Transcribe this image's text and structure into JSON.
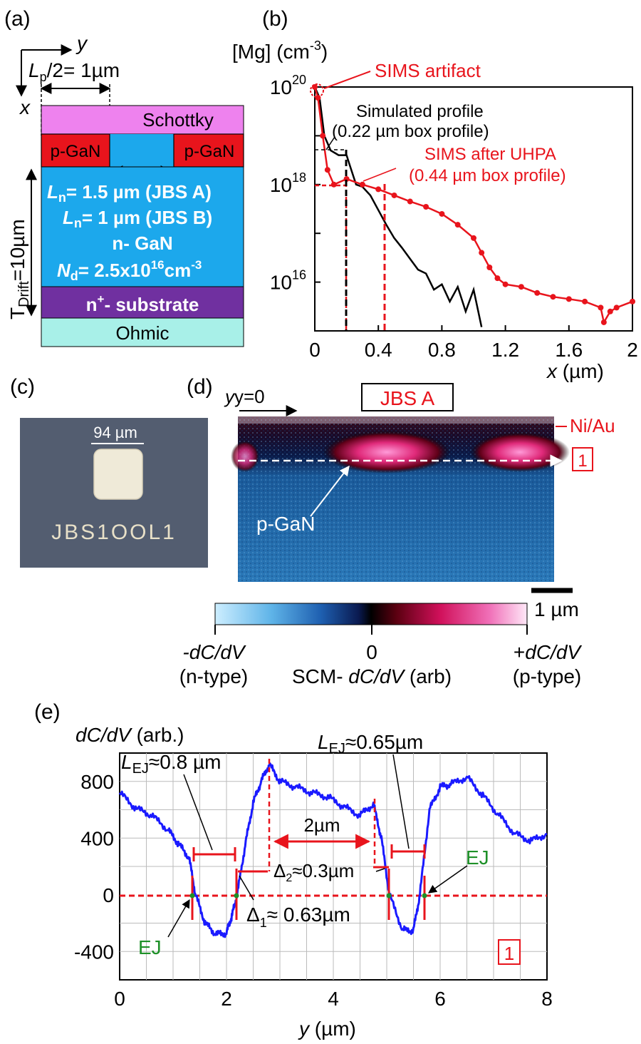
{
  "panel_a": {
    "label": "(a)",
    "axis_y": "y",
    "axis_x": "x",
    "lp_label_L": "L",
    "lp_label_sub": "p",
    "lp_label_rest": "/2= 1µm",
    "schottky": "Schottky",
    "pgan_left": "p-GaN",
    "pgan_right": "p-GaN",
    "ln_a_L": "L",
    "ln_a_sub": "n",
    "ln_a_rest": "= 1.5 µm (JBS A)",
    "ln_b_L": "L",
    "ln_b_sub": "n",
    "ln_b_rest": "= 1 µm (JBS B)",
    "ngan": "n- GaN",
    "nd_N": "N",
    "nd_sub": "d",
    "nd_rest": "= 2.5x10",
    "nd_exp": "16",
    "nd_unit": "cm",
    "nd_unit_exp": "-3",
    "tdrift_T": "T",
    "tdrift_sub": "Drift",
    "tdrift_rest": "=10µm",
    "substrate_n": "n",
    "substrate_sup": "+",
    "substrate_rest": "- substrate",
    "ohmic": "Ohmic",
    "colors": {
      "schottky": "#ee82ee",
      "pgan": "#e8141c",
      "ngan": "#1ca8ec",
      "substrate": "#7030a0",
      "ohmic": "#a8f0e8"
    }
  },
  "panel_b": {
    "label": "(b)",
    "ylabel": "[Mg] (cm",
    "ylabel_exp": "-3",
    "ylabel_close": ")",
    "ytick_base": "10",
    "yticks": [
      {
        "exp": "20",
        "v": 1e+20
      },
      {
        "exp": "18",
        "v": 1e+18
      },
      {
        "exp": "16",
        "v": 1e+16
      }
    ],
    "xticks": [
      "0",
      "0.4",
      "0.8",
      "1.2",
      "1.6",
      "2"
    ],
    "xlabel_var": "x",
    "xlabel_unit": " (µm)",
    "annotation_sims_artifact": "SIMS artifact",
    "annotation_sim_1": "Simulated profile",
    "annotation_sim_2": "(0.22 µm box profile)",
    "annotation_uhpa_1": "SIMS after UHPA",
    "annotation_uhpa_2": "(0.44 µm box profile)"
  },
  "chart_data": [
    {
      "type": "line",
      "xlabel": "x (µm)",
      "ylabel": "[Mg] (cm-3)",
      "yscale": "log",
      "xlim": [
        0,
        2
      ],
      "ylim": [
        1000000000000000.0,
        1e+20
      ],
      "series": [
        {
          "name": "Simulated profile",
          "color": "#000000",
          "x": [
            0.0,
            0.03,
            0.06,
            0.1,
            0.15,
            0.2,
            0.22,
            0.26,
            0.3,
            0.35,
            0.4,
            0.45,
            0.5,
            0.55,
            0.6,
            0.65,
            0.7,
            0.75,
            0.8,
            0.85,
            0.9,
            0.95,
            1.0,
            1.05
          ],
          "y": [
            1e+20,
            6e+19,
            1e+19,
            5e+18,
            4e+18,
            4e+18,
            2.5e+18,
            1e+18,
            9e+17,
            6e+17,
            3e+17,
            1.5e+17,
            8e+16,
            5e+16,
            3e+16,
            1.8e+16,
            1.5e+16,
            7000000000000000.0,
            9000000000000000.0,
            4000000000000000.0,
            8000000000000000.0,
            2500000000000000.0,
            7000000000000000.0,
            1200000000000000.0
          ]
        },
        {
          "name": "SIMS after UHPA",
          "color": "#e8141c",
          "x": [
            0.0,
            0.02,
            0.05,
            0.08,
            0.12,
            0.2,
            0.3,
            0.4,
            0.5,
            0.6,
            0.7,
            0.8,
            0.9,
            1.0,
            1.05,
            1.1,
            1.15,
            1.2,
            1.3,
            1.4,
            1.5,
            1.6,
            1.7,
            1.8,
            1.82,
            1.86,
            1.9,
            2.0
          ],
          "y": [
            1e+20,
            6e+19,
            1e+19,
            2e+18,
            1e+18,
            1.3e+18,
            1e+18,
            8e+17,
            6e+17,
            4.5e+17,
            3.5e+17,
            2.5e+17,
            1.5e+17,
            8e+16,
            4e+16,
            2e+16,
            1.2e+16,
            9000000000000000.0,
            8000000000000000.0,
            6000000000000000.0,
            5000000000000000.0,
            4500000000000000.0,
            4000000000000000.0,
            3000000000000000.0,
            1500000000000000.0,
            2500000000000000.0,
            3000000000000000.0,
            4000000000000000.0
          ]
        }
      ]
    },
    {
      "type": "line",
      "xlabel": "y (µm)",
      "ylabel": "dC/dV (arb.)",
      "xlim": [
        0,
        8
      ],
      "ylim": [
        -600,
        1000
      ],
      "series": [
        {
          "name": "",
          "color": "#1a1aff",
          "x": [
            0,
            0.3,
            0.6,
            0.9,
            1.1,
            1.3,
            1.42,
            1.6,
            1.8,
            2.0,
            2.1,
            2.2,
            2.35,
            2.5,
            2.65,
            2.8,
            3.0,
            3.3,
            3.6,
            3.9,
            4.2,
            4.5,
            4.75,
            4.9,
            5.05,
            5.3,
            5.5,
            5.62,
            5.8,
            6.0,
            6.2,
            6.5,
            6.8,
            7.1,
            7.4,
            7.7,
            8.0
          ],
          "y": [
            720,
            610,
            560,
            460,
            360,
            260,
            0,
            -200,
            -280,
            -270,
            -150,
            0,
            350,
            650,
            800,
            920,
            800,
            760,
            720,
            690,
            620,
            560,
            640,
            400,
            0,
            -250,
            -250,
            0,
            600,
            760,
            780,
            830,
            700,
            560,
            430,
            380,
            430
          ]
        }
      ]
    }
  ],
  "panel_c": {
    "label": "(c)",
    "scale": "94 µm",
    "chip_text": "JBS1OOL1"
  },
  "panel_d": {
    "label": "(d)",
    "y0": "y=0",
    "title": "JBS A",
    "niau": "Ni/Au",
    "marker": "1",
    "pgan": "p-GaN",
    "scalebar": "1 µm",
    "cb_left_1": "-dC/dV",
    "cb_left_2": "(n-type)",
    "cb_mid_1": "0",
    "cb_mid_2a": "SCM- ",
    "cb_mid_2b": "dC/dV",
    "cb_mid_2c": " (arb)",
    "cb_right_1a": "+",
    "cb_right_1b": "dC/dV",
    "cb_right_2": "(p-type)"
  },
  "panel_e": {
    "label": "(e)",
    "ylabel_var": "dC/dV",
    "ylabel_unit": " (arb.)",
    "yticks": [
      "800",
      "400",
      "0",
      "-400"
    ],
    "xticks": [
      "0",
      "2",
      "4",
      "6",
      "8"
    ],
    "xlabel_var": "y",
    "xlabel_unit": " (µm)",
    "lej1_L": "L",
    "lej1_sub": "EJ",
    "lej1_rest": "≈0.8 µm",
    "lej2_L": "L",
    "lej2_sub": "EJ",
    "lej2_rest": "≈0.65µm",
    "two_um": "2µm",
    "d2_sym": "Δ",
    "d2_sub": "2",
    "d2_rest": "≈0.3µm",
    "d1_sym": "Δ",
    "d1_sub": "1",
    "d1_rest": "≈ 0.63µm",
    "ej_left": "EJ",
    "ej_right": "EJ",
    "marker": "1"
  }
}
